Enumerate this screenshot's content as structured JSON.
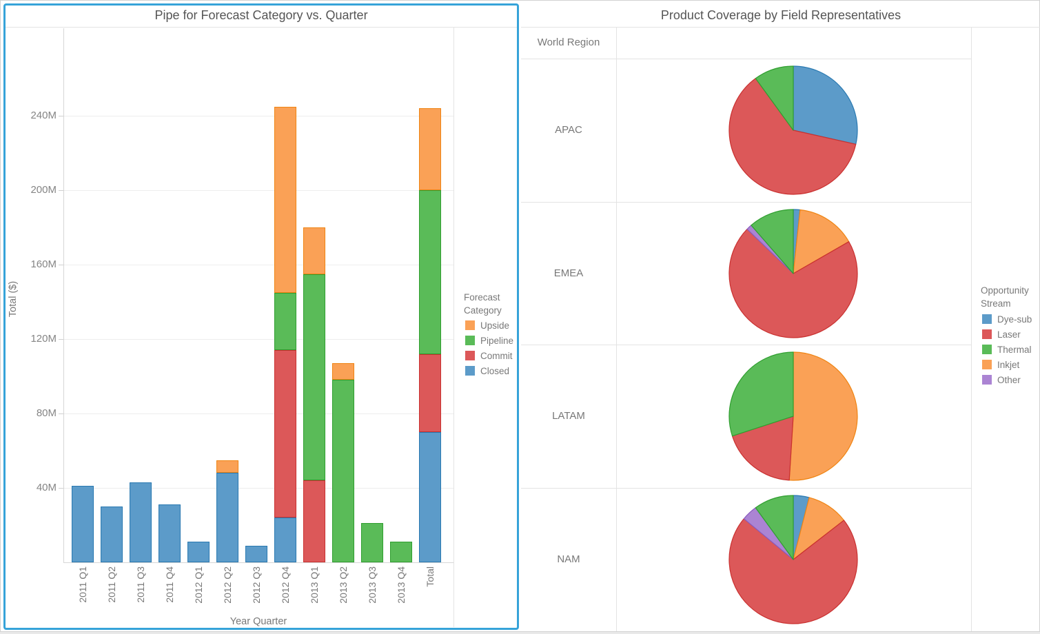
{
  "left_panel": {
    "title": "Pipe for Forecast Category vs. Quarter",
    "x_axis_title": "Year Quarter",
    "y_axis_title": "Total ($)",
    "legend": {
      "title_lines": [
        "Forecast",
        "Category"
      ],
      "items": [
        {
          "label": "Upside",
          "fill": "#FAA156"
        },
        {
          "label": "Pipeline",
          "fill": "#5ABB58"
        },
        {
          "label": "Commit",
          "fill": "#DC5859"
        },
        {
          "label": "Closed",
          "fill": "#5C9BC9"
        }
      ]
    }
  },
  "right_panel": {
    "title": "Product Coverage by Field Representatives",
    "row_header": "World Region",
    "legend": {
      "title_lines": [
        "Opportunity",
        "Stream"
      ],
      "items": [
        {
          "label": "Dye-sub",
          "fill": "#5C9BC9"
        },
        {
          "label": "Laser",
          "fill": "#DC5859"
        },
        {
          "label": "Thermal",
          "fill": "#5ABB58"
        },
        {
          "label": "Inkjet",
          "fill": "#FAA156"
        },
        {
          "label": "Other",
          "fill": "#AB84D3"
        }
      ]
    }
  },
  "colors": {
    "selection_border": "#36A3D9"
  },
  "palette": {
    "Dye-sub": {
      "fill": "#5C9BC9",
      "border": "#2878B0"
    },
    "Laser": {
      "fill": "#DC5859",
      "border": "#C9302F"
    },
    "Thermal": {
      "fill": "#5ABB58",
      "border": "#2F9E2F"
    },
    "Inkjet": {
      "fill": "#FAA156",
      "border": "#EF8412"
    },
    "Other": {
      "fill": "#AB84D3",
      "border": "#8A5CBF"
    }
  },
  "chart_data": [
    {
      "type": "bar",
      "stacked": true,
      "title": "Pipe for Forecast Category vs. Quarter",
      "xlabel": "Year Quarter",
      "ylabel": "Total ($)",
      "unit": "millions of $",
      "ylim": [
        0,
        287
      ],
      "grid": "horizontal",
      "legend_position": "right",
      "yticks": [
        {
          "value": 40,
          "label": "40M"
        },
        {
          "value": 80,
          "label": "80M"
        },
        {
          "value": 120,
          "label": "120M"
        },
        {
          "value": 160,
          "label": "160M"
        },
        {
          "value": 200,
          "label": "200M"
        },
        {
          "value": 240,
          "label": "240M"
        }
      ],
      "categories": [
        "2011 Q1",
        "2011 Q2",
        "2011 Q3",
        "2011 Q4",
        "2012 Q1",
        "2012 Q2",
        "2012 Q3",
        "2012 Q4",
        "2013 Q1",
        "2013 Q2",
        "2013 Q3",
        "2013 Q4",
        "Total"
      ],
      "series": [
        {
          "name": "Closed",
          "fill": "#5C9BC9",
          "border": "#2878B0",
          "values": [
            41,
            30,
            43,
            31,
            11,
            48,
            9,
            24,
            0,
            0,
            0,
            0,
            70
          ]
        },
        {
          "name": "Commit",
          "fill": "#DC5859",
          "border": "#C9302F",
          "values": [
            0,
            0,
            0,
            0,
            0,
            0,
            0,
            90,
            44,
            0,
            0,
            0,
            42
          ]
        },
        {
          "name": "Pipeline",
          "fill": "#5ABB58",
          "border": "#2F9E2F",
          "values": [
            0,
            0,
            0,
            0,
            0,
            0,
            0,
            31,
            111,
            98,
            21,
            11,
            88
          ]
        },
        {
          "name": "Upside",
          "fill": "#FAA156",
          "border": "#EF8412",
          "values": [
            0,
            0,
            0,
            0,
            0,
            7,
            0,
            100,
            25,
            9,
            0,
            0,
            44
          ]
        }
      ]
    },
    {
      "type": "pie",
      "title": "Product Coverage by Field Representatives",
      "row_header": "World Region",
      "legend_position": "right",
      "note": "slices listed clockwise from 12 o'clock, values are percent of pie",
      "rows": [
        {
          "region": "APAC",
          "slices": [
            {
              "stream": "Dye-sub",
              "pct": 28.5
            },
            {
              "stream": "Laser",
              "pct": 61.5
            },
            {
              "stream": "Thermal",
              "pct": 10.0
            }
          ]
        },
        {
          "region": "EMEA",
          "slices": [
            {
              "stream": "Dye-sub",
              "pct": 1.7
            },
            {
              "stream": "Inkjet",
              "pct": 15.0
            },
            {
              "stream": "Laser",
              "pct": 70.5
            },
            {
              "stream": "Other",
              "pct": 1.4
            },
            {
              "stream": "Thermal",
              "pct": 11.4
            }
          ]
        },
        {
          "region": "LATAM",
          "slices": [
            {
              "stream": "Inkjet",
              "pct": 51.0
            },
            {
              "stream": "Laser",
              "pct": 19.0
            },
            {
              "stream": "Thermal",
              "pct": 30.0
            }
          ]
        },
        {
          "region": "NAM",
          "slices": [
            {
              "stream": "Dye-sub",
              "pct": 4.0
            },
            {
              "stream": "Inkjet",
              "pct": 10.5
            },
            {
              "stream": "Laser",
              "pct": 71.5
            },
            {
              "stream": "Other",
              "pct": 4.0
            },
            {
              "stream": "Thermal",
              "pct": 10.0
            }
          ]
        }
      ]
    }
  ]
}
